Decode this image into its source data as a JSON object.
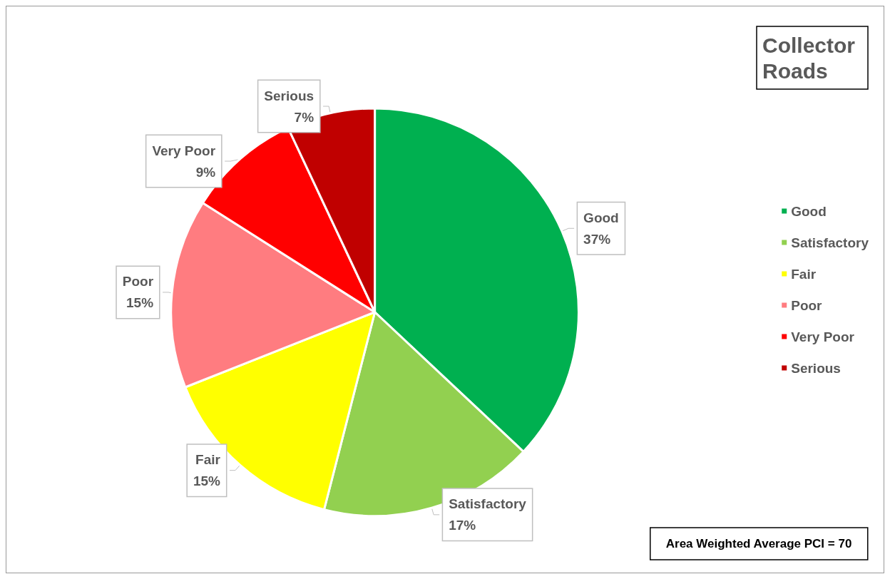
{
  "chart_data": {
    "type": "pie",
    "title": "Collector Roads",
    "categories": [
      "Good",
      "Satisfactory",
      "Fair",
      "Poor",
      "Very Poor",
      "Serious"
    ],
    "values": [
      37,
      17,
      15,
      15,
      9,
      7
    ],
    "colors": [
      "#00b050",
      "#92d050",
      "#ffff00",
      "#ff7c80",
      "#ff0000",
      "#c00000"
    ],
    "value_labels": [
      "37%",
      "17%",
      "15%",
      "15%",
      "9%",
      "7%"
    ],
    "legend": "right",
    "annotations": [
      "Area Weighted Average PCI = 70"
    ]
  }
}
